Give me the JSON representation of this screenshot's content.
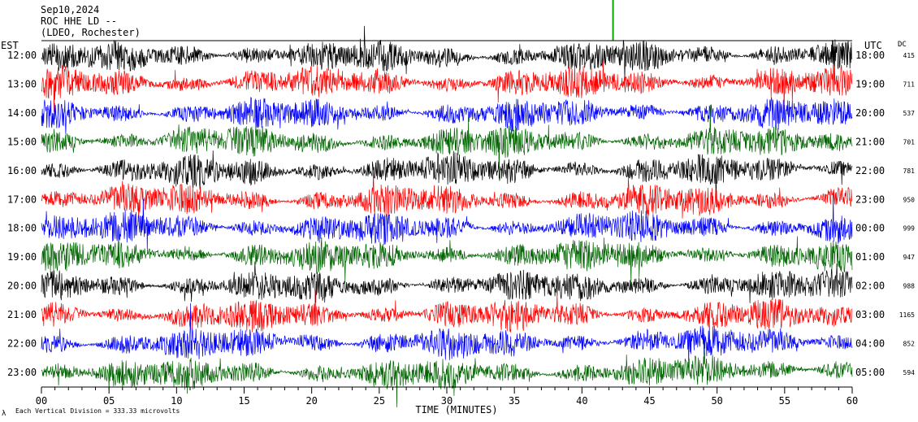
{
  "header": {
    "date": "Sep10,2024",
    "station": "ROC HHE LD --",
    "location": "(LDEO, Rochester)"
  },
  "left_axis_title": "EST",
  "right_axis_title": "UTC",
  "dc_title": "DC",
  "footer": {
    "logo_text": "λ",
    "scale_note": "Each Vertical Division =  333.33 microvolts"
  },
  "colors": {
    "black": "#000000",
    "red": "#ff0000",
    "blue": "#0000ff",
    "green": "#006400",
    "marker_green": "#00aa00"
  },
  "chart_data": {
    "type": "line",
    "title": "",
    "xlabel": "TIME (MINUTES)",
    "xlim": [
      0,
      60
    ],
    "x_ticks": [
      "00",
      "05",
      "10",
      "15",
      "20",
      "25",
      "30",
      "35",
      "40",
      "45",
      "50",
      "55",
      "60"
    ],
    "event_marker_minute": 42.3,
    "rows": [
      {
        "est": "12:00",
        "utc": "18:00",
        "dc": "415",
        "color": "black"
      },
      {
        "est": "13:00",
        "utc": "19:00",
        "dc": "711",
        "color": "red"
      },
      {
        "est": "14:00",
        "utc": "20:00",
        "dc": "537",
        "color": "blue"
      },
      {
        "est": "15:00",
        "utc": "21:00",
        "dc": "701",
        "color": "green"
      },
      {
        "est": "16:00",
        "utc": "22:00",
        "dc": "781",
        "color": "black"
      },
      {
        "est": "17:00",
        "utc": "23:00",
        "dc": "950",
        "color": "red"
      },
      {
        "est": "18:00",
        "utc": "00:00",
        "dc": "999",
        "color": "blue"
      },
      {
        "est": "19:00",
        "utc": "01:00",
        "dc": "947",
        "color": "green"
      },
      {
        "est": "20:00",
        "utc": "02:00",
        "dc": "988",
        "color": "black"
      },
      {
        "est": "21:00",
        "utc": "03:00",
        "dc": "1165",
        "color": "red"
      },
      {
        "est": "22:00",
        "utc": "04:00",
        "dc": "852",
        "color": "blue"
      },
      {
        "est": "23:00",
        "utc": "05:00",
        "dc": "594",
        "color": "green"
      }
    ]
  }
}
